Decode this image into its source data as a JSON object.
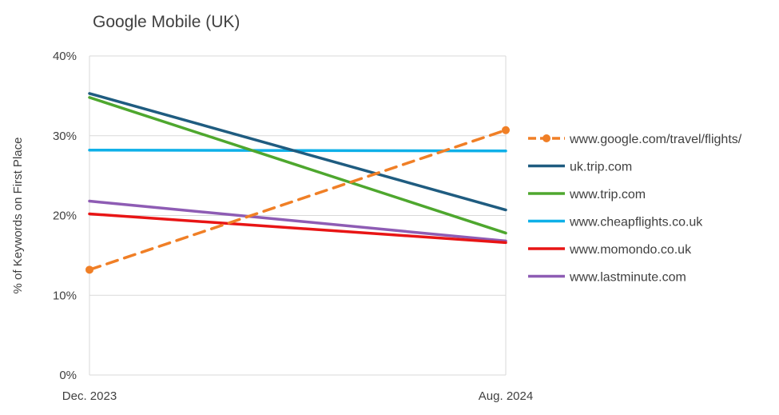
{
  "chart_data": {
    "type": "line",
    "title": "Google Mobile (UK)",
    "xlabel": "",
    "ylabel": "% of Keywords on First Place",
    "categories": [
      "Dec. 2023",
      "Aug. 2024"
    ],
    "ylim": [
      0,
      40
    ],
    "yticks": [
      "0%",
      "10%",
      "20%",
      "30%",
      "40%"
    ],
    "grid": true,
    "legend_position": "right",
    "series": [
      {
        "name": "www.google.com/travel/flights/",
        "values": [
          13.2,
          30.7
        ],
        "color": "#F07F26",
        "style": "dashed",
        "markers": true
      },
      {
        "name": "uk.trip.com",
        "values": [
          35.3,
          20.7
        ],
        "color": "#1F5C80",
        "style": "solid",
        "markers": false
      },
      {
        "name": "www.trip.com",
        "values": [
          34.8,
          17.8
        ],
        "color": "#4EA72E",
        "style": "solid",
        "markers": false
      },
      {
        "name": "www.cheapflights.co.uk",
        "values": [
          28.2,
          28.1
        ],
        "color": "#0FB0E8",
        "style": "solid",
        "markers": false
      },
      {
        "name": "www.momondo.co.uk",
        "values": [
          20.2,
          16.6
        ],
        "color": "#E81515",
        "style": "solid",
        "markers": false
      },
      {
        "name": "www.lastminute.com",
        "values": [
          21.8,
          16.8
        ],
        "color": "#8E5CB4",
        "style": "solid",
        "markers": false
      }
    ]
  }
}
